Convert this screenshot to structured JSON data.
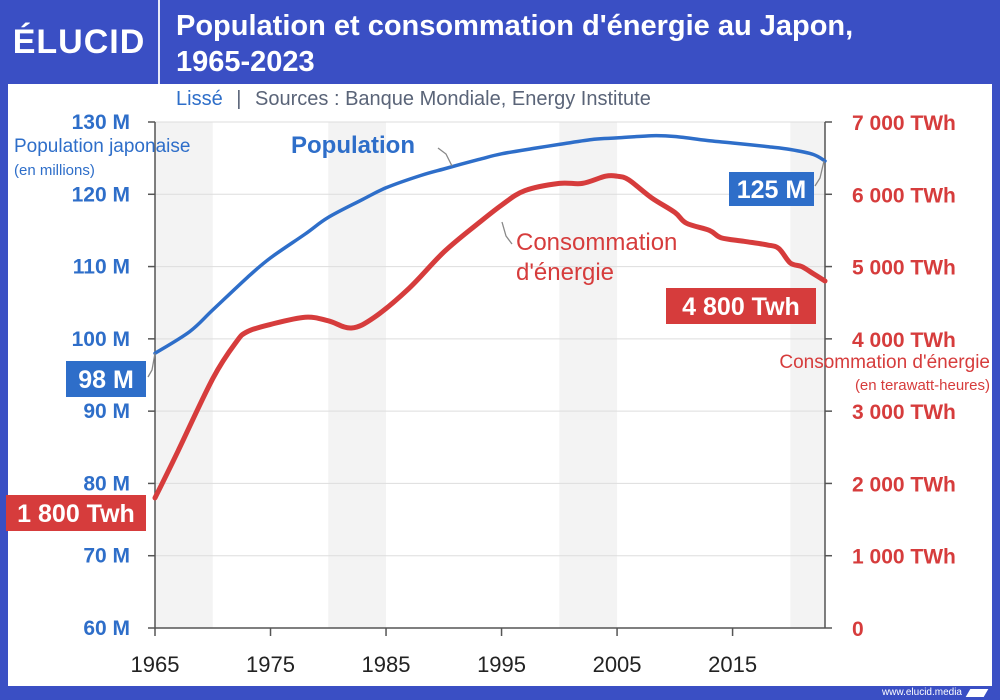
{
  "brand": {
    "logo": "ÉLUCID",
    "footer_url": "www.elucid.media"
  },
  "header": {
    "title_line1": "Population et consommation d'énergie au Japon,",
    "title_line2": "1965-2023"
  },
  "subtitle": {
    "smoothed": "Lissé",
    "separator": "|",
    "sources": "Sources : Banque Mondiale, Energy Institute"
  },
  "colors": {
    "frame": "#3a4fc4",
    "population": "#2e6ec9",
    "energy": "#d63c3c",
    "band": "#f3f3f3",
    "grid": "#dddddd"
  },
  "chart_data": {
    "type": "line",
    "x_range": [
      1965,
      2023
    ],
    "x_ticks": [
      "1965",
      "1975",
      "1985",
      "1995",
      "2005",
      "2015"
    ],
    "shaded_bands": [
      [
        1965,
        1970
      ],
      [
        1980,
        1985
      ],
      [
        2000,
        2005
      ],
      [
        2020,
        2023
      ]
    ],
    "left_axis": {
      "title_line1": "Population japonaise",
      "title_line2": "(en millions)",
      "range": [
        60,
        130
      ],
      "ticks": [
        "60 M",
        "70 M",
        "80 M",
        "90 M",
        "100 M",
        "110 M",
        "120 M",
        "130 M"
      ]
    },
    "right_axis": {
      "title_line1": "Consommation d'énergie",
      "title_line2": "(en terawatt-heures)",
      "range": [
        0,
        7000
      ],
      "ticks": [
        "0",
        "1 000 TWh",
        "2 000 TWh",
        "3 000 TWh",
        "4 000 TWh",
        "5 000 TWh",
        "6 000 TWh",
        "7 000 TWh"
      ]
    },
    "series": [
      {
        "name": "Population",
        "axis": "left",
        "x": [
          1965,
          1968,
          1970,
          1973,
          1975,
          1978,
          1980,
          1983,
          1985,
          1988,
          1990,
          1993,
          1995,
          1998,
          2000,
          2003,
          2005,
          2008,
          2010,
          2013,
          2015,
          2018,
          2020,
          2022,
          2023
        ],
        "values": [
          98,
          101,
          104,
          108.5,
          111.2,
          114.5,
          116.8,
          119.3,
          120.9,
          122.6,
          123.5,
          124.8,
          125.6,
          126.4,
          126.9,
          127.6,
          127.8,
          128.1,
          128.0,
          127.4,
          127.1,
          126.6,
          126.2,
          125.5,
          124.6
        ]
      },
      {
        "name": "Consommation d'énergie",
        "axis": "right",
        "x": [
          1965,
          1967,
          1970,
          1972,
          1973,
          1975,
          1978,
          1980,
          1982,
          1984,
          1987,
          1990,
          1993,
          1995,
          1997,
          2000,
          2002,
          2004,
          2005,
          2006,
          2008,
          2010,
          2011,
          2013,
          2014,
          2016,
          2018,
          2019,
          2020,
          2021,
          2022,
          2023
        ],
        "values": [
          1800,
          2450,
          3450,
          3950,
          4100,
          4200,
          4300,
          4250,
          4150,
          4300,
          4700,
          5200,
          5600,
          5850,
          6050,
          6150,
          6150,
          6250,
          6250,
          6200,
          5950,
          5750,
          5600,
          5500,
          5400,
          5350,
          5300,
          5250,
          5050,
          5000,
          4900,
          4800
        ]
      }
    ],
    "labels": {
      "population_series": "Population",
      "energy_series_line1": "Consommation",
      "energy_series_line2": "d'énergie",
      "pop_start": "98 M",
      "pop_end": "125 M",
      "energy_start": "1 800 Twh",
      "energy_end": "4 800 Twh"
    }
  }
}
